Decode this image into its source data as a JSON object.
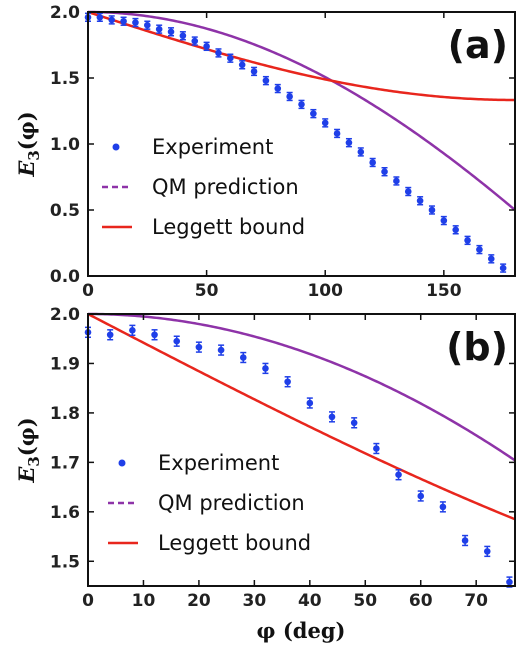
{
  "chart_data": [
    {
      "type": "scatter",
      "panel_label": "(a)",
      "ylabel": "E_3(φ)",
      "xlabel": "",
      "xlim": [
        0,
        180
      ],
      "ylim": [
        0,
        2.0
      ],
      "xticks": [
        "0",
        "50",
        "100",
        "150"
      ],
      "yticks": [
        "0.0",
        "0.5",
        "1.0",
        "1.5",
        "2.0"
      ],
      "legend": {
        "placement": "left",
        "entries": [
          "Experiment",
          "QM prediction",
          "Leggett bound"
        ]
      },
      "colors": {
        "experiment": "#1f3fe8",
        "qm": "#8e33a8",
        "leggett": "#e8261d"
      },
      "series": [
        {
          "name": "Experiment",
          "x": [
            0,
            5,
            10,
            15,
            20,
            25,
            30,
            35,
            40,
            45,
            50,
            55,
            60,
            65,
            70,
            75,
            80,
            85,
            90,
            95,
            100,
            105,
            110,
            115,
            120,
            125,
            130,
            135,
            140,
            145,
            150,
            155,
            160,
            165,
            170,
            175
          ],
          "y": [
            1.96,
            1.96,
            1.94,
            1.93,
            1.92,
            1.9,
            1.87,
            1.85,
            1.82,
            1.78,
            1.74,
            1.69,
            1.65,
            1.6,
            1.55,
            1.48,
            1.42,
            1.36,
            1.3,
            1.23,
            1.16,
            1.08,
            1.01,
            0.94,
            0.86,
            0.79,
            0.72,
            0.64,
            0.57,
            0.5,
            0.42,
            0.35,
            0.27,
            0.2,
            0.13,
            0.06
          ],
          "yerr": 0.03
        },
        {
          "name": "QM prediction",
          "function": "3*cos(x/3)-1",
          "curve": "purple"
        },
        {
          "name": "Leggett bound",
          "function": "2-(2/3)*|sin(x/2)|",
          "curve": "red"
        }
      ]
    },
    {
      "type": "scatter",
      "panel_label": "(b)",
      "ylabel": "E_3(φ)",
      "xlabel": "φ (deg)",
      "xlim": [
        0,
        77
      ],
      "ylim": [
        1.45,
        2.0
      ],
      "xticks": [
        "0",
        "10",
        "20",
        "30",
        "40",
        "50",
        "60",
        "70"
      ],
      "yticks": [
        "1.5",
        "1.6",
        "1.7",
        "1.8",
        "1.9",
        "2.0"
      ],
      "legend": {
        "placement": "bottom-left",
        "entries": [
          "Experiment",
          "QM prediction",
          "Leggett bound"
        ]
      },
      "colors": {
        "experiment": "#1f3fe8",
        "qm": "#8e33a8",
        "leggett": "#e8261d"
      },
      "series": [
        {
          "name": "Experiment",
          "x": [
            0,
            4,
            8,
            12,
            16,
            20,
            24,
            28,
            32,
            36,
            40,
            44,
            48,
            52,
            56,
            60,
            64,
            68,
            72,
            76
          ],
          "y": [
            1.963,
            1.958,
            1.967,
            1.958,
            1.945,
            1.933,
            1.927,
            1.912,
            1.89,
            1.863,
            1.82,
            1.792,
            1.78,
            1.728,
            1.675,
            1.632,
            1.61,
            1.542,
            1.52,
            1.458
          ],
          "yerr": 0.01
        },
        {
          "name": "QM prediction",
          "function": "3*cos(x/3)-1",
          "curve": "purple"
        },
        {
          "name": "Leggett bound",
          "function": "2-(2/3)*|sin(x/2)|",
          "curve": "red"
        }
      ]
    }
  ]
}
